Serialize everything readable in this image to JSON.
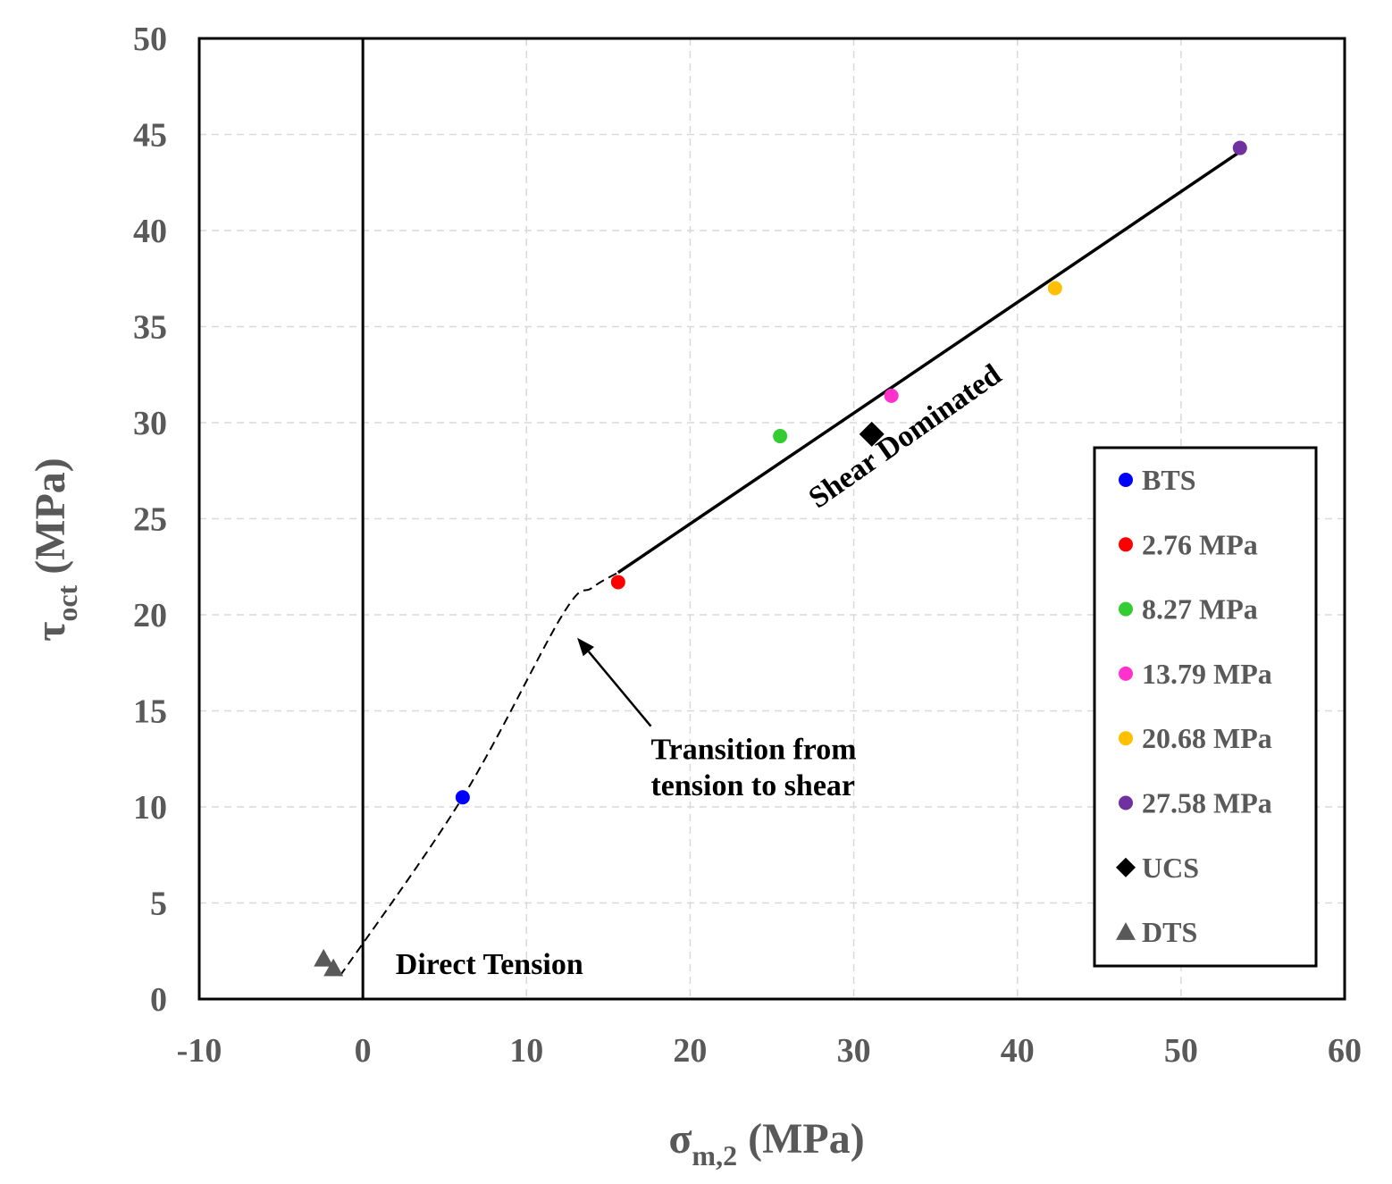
{
  "chart_data": {
    "type": "scatter",
    "title": "",
    "xlabel": {
      "main": "σ",
      "sub": "m,2",
      "unit": " (MPa)"
    },
    "ylabel": {
      "main": "τ",
      "sub": "oct",
      "unit": " (MPa)"
    },
    "xlim": [
      -10,
      60
    ],
    "ylim": [
      0,
      50
    ],
    "xticks": [
      -10,
      0,
      10,
      20,
      30,
      40,
      50,
      60
    ],
    "yticks": [
      0,
      5,
      10,
      15,
      20,
      25,
      30,
      35,
      40,
      45,
      50
    ],
    "xtick_labels": [
      "-10",
      "0",
      "10",
      "20",
      "30",
      "40",
      "50",
      "60"
    ],
    "ytick_labels": [
      "0",
      "5",
      "10",
      "15",
      "20",
      "25",
      "30",
      "35",
      "40",
      "45",
      "50"
    ],
    "grid": true,
    "series": [
      {
        "name": "BTS",
        "marker": "circle",
        "color": "#0000ff",
        "points": [
          [
            6.1,
            10.5
          ]
        ]
      },
      {
        "name": "2.76 MPa",
        "marker": "circle",
        "color": "#ff0000",
        "points": [
          [
            15.6,
            21.7
          ]
        ]
      },
      {
        "name": "8.27 MPa",
        "marker": "circle",
        "color": "#33cc33",
        "points": [
          [
            25.5,
            29.3
          ]
        ]
      },
      {
        "name": "13.79 MPa",
        "marker": "circle",
        "color": "#ff33cc",
        "points": [
          [
            32.3,
            31.4
          ]
        ]
      },
      {
        "name": "20.68 MPa",
        "marker": "circle",
        "color": "#ffc000",
        "points": [
          [
            42.3,
            37.0
          ]
        ]
      },
      {
        "name": "27.58 MPa",
        "marker": "circle",
        "color": "#7030a0",
        "points": [
          [
            53.6,
            44.3
          ]
        ]
      },
      {
        "name": "UCS",
        "marker": "diamond",
        "color": "#000000",
        "points": [
          [
            31.1,
            29.4
          ]
        ]
      },
      {
        "name": "DTS",
        "marker": "triangle",
        "color": "#595959",
        "points": [
          [
            -2.4,
            2.1
          ],
          [
            -1.8,
            1.6
          ]
        ]
      }
    ],
    "lines": [
      {
        "name": "Shear Dominated envelope",
        "style": "solid",
        "points": [
          [
            15.6,
            22.2
          ],
          [
            53.6,
            44.1
          ]
        ]
      },
      {
        "name": "Transition curve",
        "style": "dashed",
        "points": [
          [
            -1.4,
            1.2
          ],
          [
            6.1,
            10.5
          ],
          [
            12.2,
            20.0
          ],
          [
            14.0,
            21.4
          ],
          [
            15.6,
            22.2
          ]
        ]
      }
    ],
    "reference_lines": [
      {
        "axis": "x",
        "value": 0
      }
    ],
    "annotations": [
      {
        "text": "Shear Dominated",
        "x": 27.8,
        "y": 25.5,
        "rotation_deg": -35
      },
      {
        "text": "Direct Tension",
        "x": 2.0,
        "y": 1.3
      },
      {
        "text": "Transition from",
        "x": 17.6,
        "y": 12.5
      },
      {
        "text": "tension to shear",
        "x": 17.6,
        "y": 10.6
      }
    ],
    "arrow": {
      "from": [
        17.6,
        14.2
      ],
      "to": [
        13.1,
        18.8
      ]
    },
    "legend_position": "right"
  }
}
